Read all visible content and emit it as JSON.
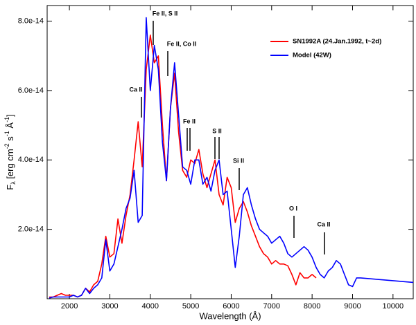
{
  "chart_data": {
    "type": "line",
    "xlabel": "Wavelength (Å)",
    "ylabel": [
      "F",
      "λ",
      " [erg cm",
      "-2",
      " s",
      "-1",
      " Å",
      "-1",
      "]"
    ],
    "xlim": [
      1450,
      10500
    ],
    "ylim": [
      0,
      8.45e-14
    ],
    "xticks": [
      2000,
      3000,
      4000,
      5000,
      6000,
      7000,
      8000,
      9000,
      10000
    ],
    "yticks": [
      {
        "value": 2e-14,
        "label": "2.0e-14"
      },
      {
        "value": 4e-14,
        "label": "4.0e-14"
      },
      {
        "value": 6e-14,
        "label": "6.0e-14"
      },
      {
        "value": 8e-14,
        "label": "8.0e-14"
      }
    ],
    "legend": "upper right",
    "annotations": [
      "Ca II",
      "Fe II, S II",
      "Fe II, Co II",
      "Fe II",
      "S II",
      "Si II",
      "O I",
      "Ca II"
    ],
    "x": [
      1500,
      1600,
      1700,
      1800,
      1900,
      2000,
      2100,
      2200,
      2300,
      2400,
      2500,
      2600,
      2700,
      2800,
      2900,
      3000,
      3100,
      3200,
      3300,
      3400,
      3500,
      3600,
      3700,
      3800,
      3900,
      4000,
      4100,
      4200,
      4300,
      4400,
      4500,
      4600,
      4700,
      4800,
      4900,
      5000,
      5100,
      5200,
      5300,
      5400,
      5500,
      5600,
      5700,
      5800,
      5900,
      6000,
      6100,
      6200,
      6300,
      6400,
      6500,
      6600,
      6700,
      6800,
      6900,
      7000,
      7100,
      7200,
      7300,
      7400,
      7500,
      7600,
      7700,
      7800,
      7900,
      8000,
      8100,
      8200,
      8300,
      8400,
      8500,
      8600,
      8700,
      8800,
      8900,
      9000,
      9100,
      9200,
      9300,
      9400,
      9500,
      9600,
      9700,
      9800,
      9900,
      10000,
      10100,
      10200,
      10300,
      10400,
      10500
    ],
    "series": [
      {
        "name": "SN1992A (24.Jan.1992, t~2d)",
        "color": "#ff0000",
        "values": [
          5e-16,
          5e-16,
          1e-15,
          1.5e-15,
          1e-15,
          1e-15,
          1e-15,
          5e-16,
          1e-15,
          3e-15,
          2e-15,
          4e-15,
          5e-15,
          1e-14,
          1.8e-14,
          1.2e-14,
          1.3e-14,
          2.3e-14,
          1.6e-14,
          2.4e-14,
          3e-14,
          4e-14,
          5.1e-14,
          3.8e-14,
          6.6e-14,
          7.6e-14,
          6.8e-14,
          7e-14,
          5e-14,
          3.4e-14,
          5.5e-14,
          6.5e-14,
          4.8e-14,
          3.7e-14,
          3.5e-14,
          4e-14,
          3.9e-14,
          4.3e-14,
          3.6e-14,
          3.2e-14,
          3.6e-14,
          4e-14,
          3e-14,
          2.7e-14,
          3.5e-14,
          3.2e-14,
          2.2e-14,
          2.6e-14,
          2.8e-14,
          2.5e-14,
          2.1e-14,
          1.8e-14,
          1.5e-14,
          1.3e-14,
          1.2e-14,
          1e-14,
          1.1e-14,
          1e-14,
          1e-14,
          9.5e-15,
          7e-15,
          4e-15,
          7.5e-15,
          6e-15,
          6e-15,
          7e-15,
          6e-15,
          null,
          null,
          null,
          null,
          null,
          null,
          null,
          null,
          null,
          null,
          null,
          null,
          null,
          null,
          null,
          null,
          null,
          null,
          null,
          null,
          null,
          null,
          null,
          null
        ]
      },
      {
        "name": "Model (42W)",
        "color": "#0000ff",
        "values": [
          2e-16,
          5e-16,
          5e-16,
          5e-16,
          5e-16,
          5e-16,
          1e-15,
          5e-16,
          1e-15,
          3e-15,
          1.5e-15,
          3e-15,
          4e-15,
          6e-15,
          1.7e-14,
          8e-15,
          1e-14,
          1.5e-14,
          2e-14,
          2.6e-14,
          2.9e-14,
          3.7e-14,
          2.2e-14,
          2.4e-14,
          8.1e-14,
          6e-14,
          7.3e-14,
          6.6e-14,
          4.5e-14,
          3.4e-14,
          5.5e-14,
          6.8e-14,
          5.3e-14,
          3.8e-14,
          3.7e-14,
          3.3e-14,
          4e-14,
          4e-14,
          3.3e-14,
          3.5e-14,
          3.1e-14,
          3.7e-14,
          4e-14,
          3e-14,
          3.1e-14,
          2e-14,
          9e-15,
          1.8e-14,
          3e-14,
          3.2e-14,
          2.7e-14,
          2.3e-14,
          2e-14,
          1.9e-14,
          1.8e-14,
          1.6e-14,
          1.7e-14,
          1.8e-14,
          1.6e-14,
          1.3e-14,
          1.2e-14,
          1.3e-14,
          1.4e-14,
          1.5e-14,
          1.4e-14,
          1.2e-14,
          9e-15,
          7e-15,
          6e-15,
          8e-15,
          9e-15,
          1.1e-14,
          1e-14,
          7e-15,
          4e-15,
          3.5e-15,
          6e-15,
          6e-15,
          5.9e-15,
          5.8e-15,
          5.7e-15,
          5.6e-15,
          5.5e-15,
          5.4e-15,
          5.3e-15,
          5.2e-15,
          5.1e-15,
          5e-15,
          4.9e-15,
          4.8e-15,
          4.7e-15
        ]
      }
    ]
  }
}
